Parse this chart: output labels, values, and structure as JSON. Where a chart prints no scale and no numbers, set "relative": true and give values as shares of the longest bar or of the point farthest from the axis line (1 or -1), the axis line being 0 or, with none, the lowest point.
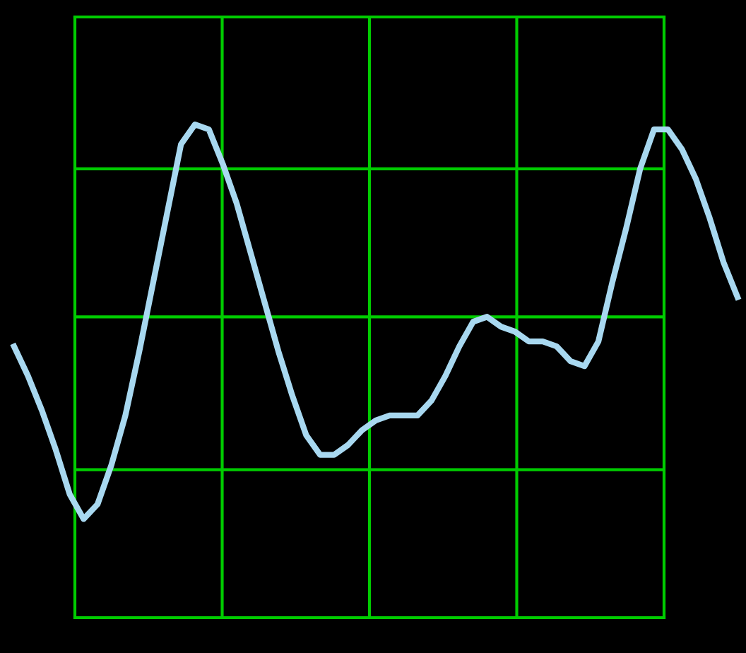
{
  "chart_data": {
    "type": "line",
    "relative": true,
    "grid": "x",
    "ref_lines": [
      {
        "axis": "y",
        "value": 0.3,
        "color": "#00cc00"
      },
      {
        "axis": "y",
        "value": 0.61,
        "color": "#00cc00"
      },
      {
        "axis": "y",
        "value": 0.91,
        "color": "#00cc00"
      }
    ],
    "marker": "none",
    "line_style": "solid",
    "categories": [
      null,
      null,
      null,
      null,
      null,
      null,
      null,
      null,
      null,
      null,
      null,
      null,
      null,
      null,
      null,
      null,
      null,
      null,
      null,
      null,
      null,
      null,
      null,
      null,
      null,
      null,
      null,
      null,
      null,
      null,
      null,
      null,
      null,
      null,
      null,
      null,
      null,
      null,
      null,
      null,
      null,
      null,
      null,
      null,
      null,
      null,
      null,
      null,
      null,
      null,
      null,
      null,
      null
    ],
    "series": [
      {
        "color": "#a8d8f0",
        "values": [
          0.55,
          0.49,
          0.42,
          0.34,
          0.25,
          0.2,
          0.23,
          0.31,
          0.41,
          0.54,
          0.68,
          0.82,
          0.96,
          1,
          0.99,
          0.92,
          0.84,
          0.74,
          0.64,
          0.54,
          0.45,
          0.37,
          0.33,
          0.33,
          0.35,
          0.38,
          0.4,
          0.41,
          0.41,
          0.41,
          0.44,
          0.49,
          0.55,
          0.6,
          0.61,
          0.59,
          0.58,
          0.56,
          0.56,
          0.55,
          0.52,
          0.51,
          0.56,
          0.68,
          0.79,
          0.91,
          0.99,
          0.99,
          0.95,
          0.89,
          0.81,
          0.72,
          0.65
        ]
      }
    ]
  }
}
